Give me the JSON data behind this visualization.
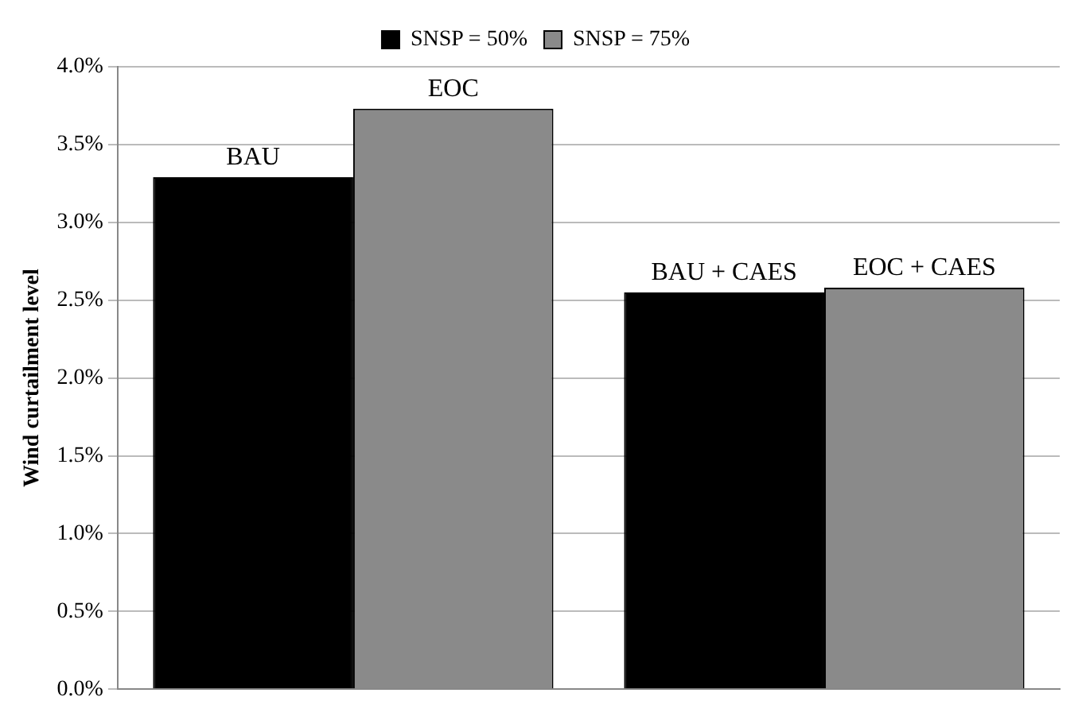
{
  "chart_data": {
    "type": "bar",
    "ylabel": "Wind curtailment level",
    "categories": [
      null,
      null
    ],
    "series": [
      {
        "name": "SNSP = 50%",
        "color": "#000000",
        "values": [
          3.29,
          2.55
        ],
        "value_labels": [
          "BAU",
          "BAU + CAES"
        ]
      },
      {
        "name": "SNSP = 75%",
        "color": "#8a8a8a",
        "values": [
          3.73,
          2.58
        ],
        "value_labels": [
          "EOC",
          "EOC + CAES"
        ]
      }
    ],
    "ylim": [
      0,
      4
    ],
    "yticks": [
      {
        "value": 0,
        "label": "0.0%"
      },
      {
        "value": 0.5,
        "label": "0.5%"
      },
      {
        "value": 1,
        "label": "1.0%"
      },
      {
        "value": 1.5,
        "label": "1.5%"
      },
      {
        "value": 2,
        "label": "2.0%"
      },
      {
        "value": 2.5,
        "label": "2.5%"
      },
      {
        "value": 3,
        "label": "3.0%"
      },
      {
        "value": 3.5,
        "label": "3.5%"
      },
      {
        "value": 4,
        "label": "4.0%"
      }
    ],
    "grid": "y",
    "legend": "top"
  }
}
